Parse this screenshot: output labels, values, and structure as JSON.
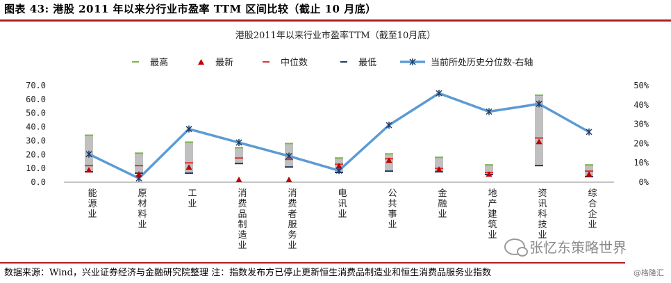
{
  "figure_title": "图表 43: 港股 2011 年以来分行业市盈率 TTM 区间比较（截止 10 月底）",
  "source_note": "数据来源：Wind，兴业证券经济与金融研究院整理  注：指数发布方已停止更新恒生消费品制造业和恒生消费品服务业指数",
  "watermark": "张忆东策略世界",
  "badge": "@格隆汇",
  "colors": {
    "accent_rule": "#b01d23",
    "range_bar": "#c0c0c0",
    "high": "#7ab648",
    "latest": "#c00000",
    "median": "#e03030",
    "low": "#1f3864",
    "percentile_line": "#5b9bd5"
  },
  "chart_data": {
    "type": "bar",
    "title": "港股2011年以来行业市盈率TTM（截至10月底）",
    "categories": [
      "能源业",
      "原材料业",
      "工业",
      "消费品制造业",
      "消费者服务业",
      "电讯业",
      "公共事业",
      "金融业",
      "地产建筑业",
      "资讯科技业",
      "综合企业"
    ],
    "legend": [
      "最高",
      "最新",
      "中位数",
      "最低",
      "当前所处历史分位数-右轴"
    ],
    "legend_position": "top",
    "y_left": {
      "ticks": [
        "0.0",
        "10.0",
        "20.0",
        "30.0",
        "40.0",
        "50.0",
        "60.0",
        "70.0"
      ],
      "ylim": [
        0,
        70
      ]
    },
    "y_right": {
      "ticks": [
        "0%",
        "10%",
        "20%",
        "30%",
        "40%",
        "50%"
      ],
      "ylim": [
        0,
        0.5
      ]
    },
    "series": [
      {
        "name": "最高",
        "values": [
          34,
          21,
          29,
          25,
          28,
          17.5,
          20.5,
          18,
          12.5,
          63,
          12.5
        ]
      },
      {
        "name": "最新",
        "values": [
          9,
          6,
          11,
          0,
          0,
          12,
          16,
          9.5,
          6,
          29.5,
          6
        ]
      },
      {
        "name": "中位数",
        "values": [
          12,
          12,
          14,
          17.5,
          16.5,
          13,
          17,
          10,
          7,
          32,
          8
        ]
      },
      {
        "name": "最低",
        "values": [
          7.5,
          6.5,
          6.5,
          13.5,
          11,
          7,
          8,
          7.5,
          5.5,
          12,
          4
        ]
      },
      {
        "name": "当前所处历史分位数-右轴",
        "axis": "right",
        "values": [
          0.145,
          0.02,
          0.275,
          0.205,
          0.135,
          0.06,
          0.295,
          0.46,
          0.365,
          0.405,
          0.26
        ]
      }
    ],
    "grid": false
  }
}
